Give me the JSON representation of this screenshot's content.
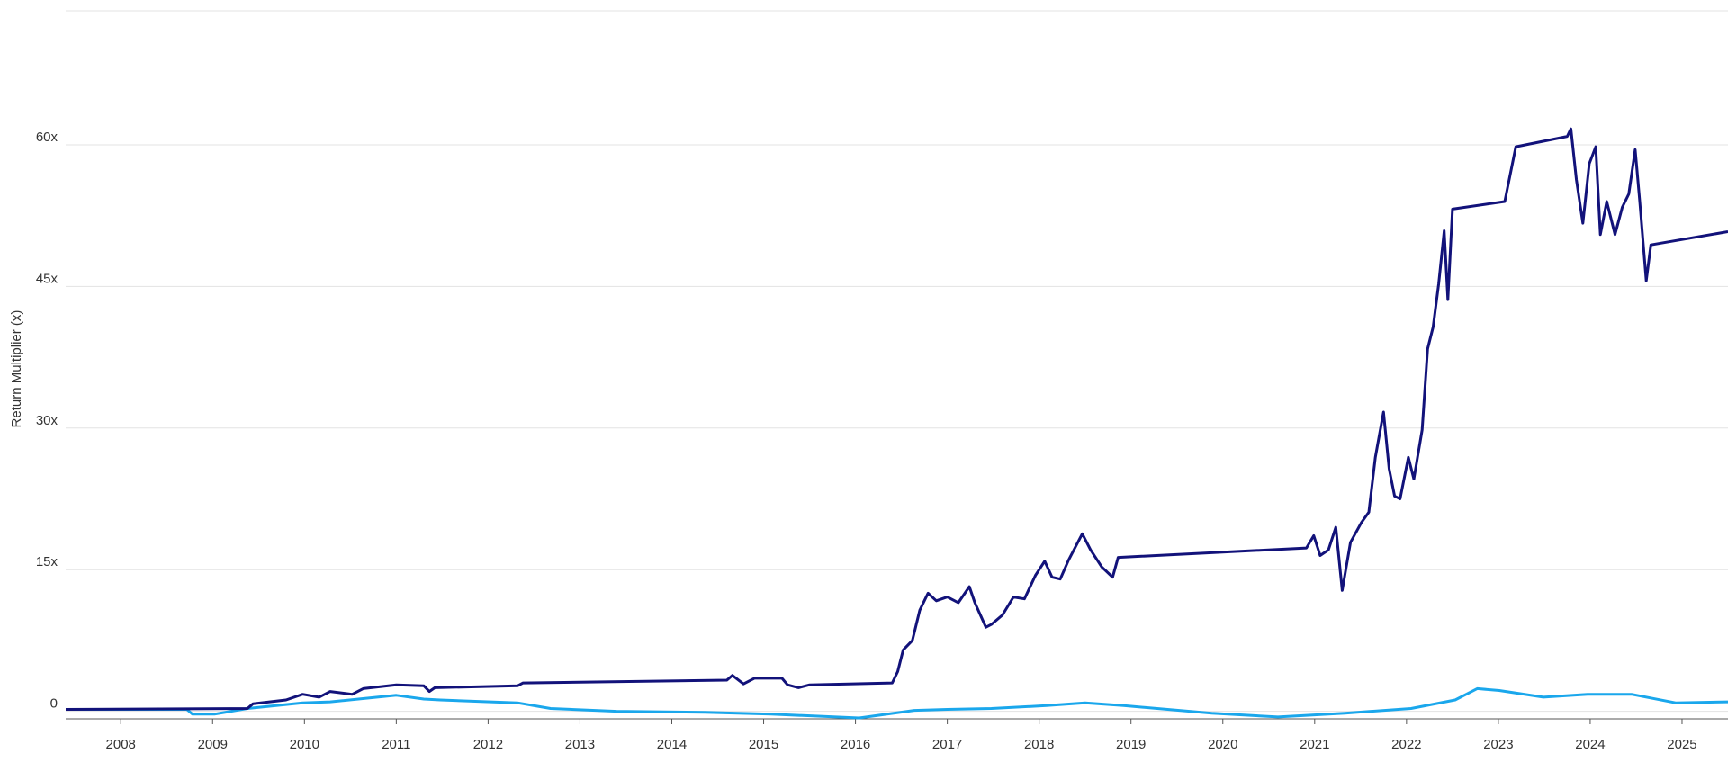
{
  "chart_data": {
    "type": "line",
    "y_label": "Return Multiplier (x)",
    "xlim": [
      2007.4,
      2025.5
    ],
    "xticks": [
      2008,
      2009,
      2010,
      2011,
      2012,
      2013,
      2014,
      2015,
      2016,
      2017,
      2018,
      2019,
      2020,
      2021,
      2022,
      2023,
      2024,
      2025
    ],
    "ylim": [
      -0.8,
      74.2
    ],
    "yticks": [
      0,
      {
        "value": 15,
        "label": "15x"
      },
      {
        "value": 30,
        "label": "30x"
      },
      {
        "value": 45,
        "label": "45x"
      },
      {
        "value": 60,
        "label": "60x"
      }
    ],
    "grid": true,
    "series": [
      {
        "color": "#12127a",
        "x": [
          2007.4,
          2009.38,
          2009.44,
          2009.8,
          2009.98,
          2010.16,
          2010.28,
          2010.52,
          2010.64,
          2011.0,
          2011.3,
          2011.36,
          2011.42,
          2012.32,
          2012.38,
          2014.6,
          2014.66,
          2014.78,
          2014.9,
          2015.2,
          2015.26,
          2015.38,
          2015.5,
          2016.4,
          2016.46,
          2016.52,
          2016.62,
          2016.7,
          2016.79,
          2016.88,
          2017.0,
          2017.12,
          2017.24,
          2017.3,
          2017.42,
          2017.48,
          2017.6,
          2017.72,
          2017.84,
          2017.96,
          2018.06,
          2018.14,
          2018.23,
          2018.32,
          2018.47,
          2018.56,
          2018.68,
          2018.8,
          2018.86,
          2020.91,
          2020.99,
          2021.06,
          2021.15,
          2021.23,
          2021.3,
          2021.39,
          2021.51,
          2021.59,
          2021.66,
          2021.75,
          2021.81,
          2021.87,
          2021.93,
          2022.02,
          2022.08,
          2022.17,
          2022.23,
          2022.29,
          2022.35,
          2022.41,
          2022.45,
          2022.5,
          2023.07,
          2023.19,
          2023.75,
          2023.79,
          2023.85,
          2023.92,
          2023.99,
          2024.06,
          2024.11,
          2024.18,
          2024.27,
          2024.35,
          2024.42,
          2024.49,
          2024.54,
          2024.61,
          2024.66,
          2025.5
        ],
        "values": [
          0.2,
          0.3,
          0.8,
          1.2,
          1.8,
          1.5,
          2.1,
          1.8,
          2.4,
          2.8,
          2.7,
          2.1,
          2.5,
          2.7,
          3.0,
          3.3,
          3.8,
          2.9,
          3.5,
          3.5,
          2.8,
          2.5,
          2.8,
          3.0,
          4.2,
          6.5,
          7.5,
          10.7,
          12.5,
          11.7,
          12.1,
          11.5,
          13.2,
          11.5,
          8.9,
          9.2,
          10.2,
          12.1,
          11.9,
          14.4,
          15.9,
          14.2,
          14.0,
          16.0,
          18.8,
          17.1,
          15.3,
          14.2,
          16.3,
          17.3,
          18.6,
          16.5,
          17.1,
          19.5,
          12.8,
          17.9,
          20.0,
          21.1,
          26.9,
          31.7,
          25.7,
          22.8,
          22.5,
          26.9,
          24.6,
          29.8,
          38.4,
          40.7,
          45.3,
          50.9,
          43.6,
          53.2,
          54.0,
          59.8,
          60.9,
          61.7,
          56.3,
          51.7,
          58.0,
          59.8,
          50.5,
          54.0,
          50.5,
          53.4,
          54.8,
          59.5,
          54.0,
          45.6,
          49.4,
          50.8
        ]
      },
      {
        "color": "#1aa7ec",
        "x": [
          2007.4,
          2008.72,
          2008.78,
          2009.02,
          2009.38,
          2009.98,
          2010.28,
          2011.0,
          2011.3,
          2011.48,
          2012.32,
          2012.68,
          2013.4,
          2014.36,
          2015.08,
          2016.04,
          2016.64,
          2017.0,
          2017.48,
          2018.08,
          2018.5,
          2018.92,
          2019.88,
          2020.6,
          2021.33,
          2022.05,
          2022.53,
          2022.77,
          2023.01,
          2023.49,
          2023.97,
          2024.45,
          2024.93,
          2025.5
        ],
        "values": [
          0.2,
          0.2,
          -0.3,
          -0.3,
          0.3,
          0.9,
          1.0,
          1.7,
          1.3,
          1.2,
          0.9,
          0.3,
          0.0,
          -0.1,
          -0.3,
          -0.7,
          0.1,
          0.2,
          0.3,
          0.6,
          0.9,
          0.6,
          -0.2,
          -0.6,
          -0.2,
          0.3,
          1.2,
          2.4,
          2.2,
          1.5,
          1.8,
          1.8,
          0.9,
          1.0
        ]
      }
    ]
  }
}
